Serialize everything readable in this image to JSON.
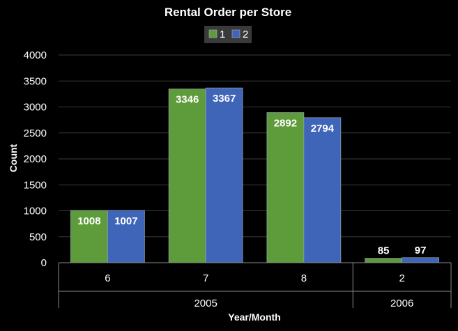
{
  "chart_data": {
    "type": "bar",
    "title": "Rental Order per Store",
    "xlabel": "Year/Month",
    "ylabel": "Count",
    "ylim": [
      0,
      4000
    ],
    "yticks": [
      0,
      500,
      1000,
      1500,
      2000,
      2500,
      3000,
      3500,
      4000
    ],
    "grid": true,
    "legend_position": "top",
    "categories": [
      "6",
      "7",
      "8",
      "2"
    ],
    "groups": [
      {
        "label": "2005",
        "count": 3
      },
      {
        "label": "2006",
        "count": 1
      }
    ],
    "series": [
      {
        "name": "1",
        "color": "#5e9b3a",
        "values": [
          1008,
          3346,
          2892,
          85
        ]
      },
      {
        "name": "2",
        "color": "#3e65b8",
        "values": [
          1007,
          3367,
          2794,
          97
        ]
      }
    ]
  }
}
